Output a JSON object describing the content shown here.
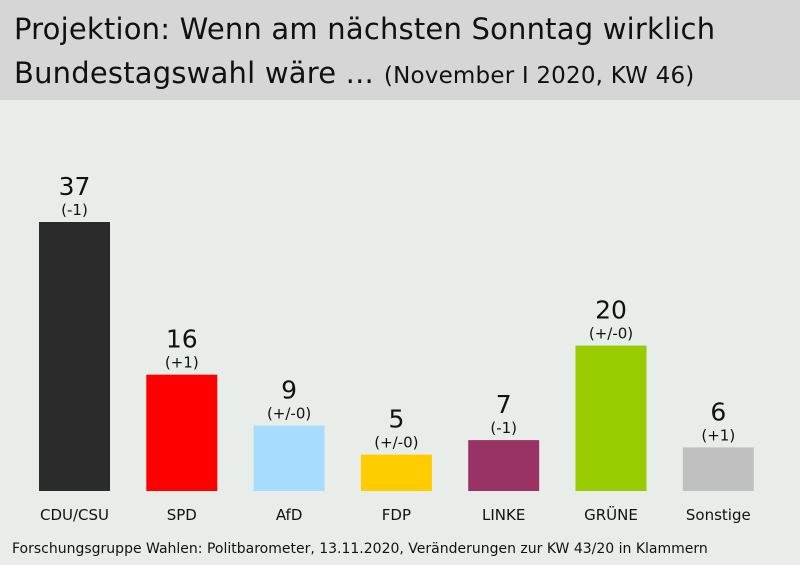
{
  "title": {
    "line1": "Projektion: Wenn am nächsten Sonntag wirklich",
    "line2": "Bundestagswahl wäre ...",
    "subtitle": "(November I 2020, KW 46)"
  },
  "source": "Forschungsgruppe  Wahlen: Politbarometer, 13.11.2020,  Veränderungen  zur KW 43/20  in Klammern",
  "chart_data": {
    "type": "bar",
    "categories": [
      "CDU/CSU",
      "SPD",
      "AfD",
      "FDP",
      "LINKE",
      "GRÜNE",
      "Sonstige"
    ],
    "values": [
      37,
      16,
      9,
      5,
      7,
      20,
      6
    ],
    "changes": [
      "(-1)",
      "(+1)",
      "(+/-0)",
      "(+/-0)",
      "(-1)",
      "(+/-0)",
      "(+1)"
    ],
    "colors": [
      "#2b2b2b",
      "#ff0000",
      "#a8dcff",
      "#ffcc00",
      "#993366",
      "#99cc00",
      "#c0c0c0"
    ],
    "ylim": [
      0,
      37
    ],
    "grid": false,
    "legend": "none"
  }
}
